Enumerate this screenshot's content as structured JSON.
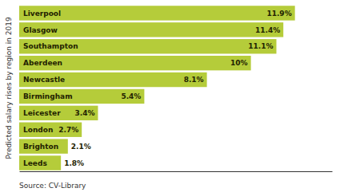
{
  "chart_data": {
    "type": "bar",
    "orientation": "horizontal",
    "categories": [
      "Leeds",
      "Brighton",
      "London",
      "Leicester",
      "Birmingham",
      "Newcastle",
      "Aberdeen",
      "Southampton",
      "Glasgow",
      "Liverpool"
    ],
    "values": [
      1.8,
      2.1,
      2.7,
      3.4,
      5.4,
      8.1,
      10.0,
      11.1,
      11.4,
      11.9
    ],
    "value_labels": [
      "1.8%",
      "2.1%",
      "2.7%",
      "3.4%",
      "5.4%",
      "8.1%",
      "10%",
      "11.1%",
      "11.4%",
      "11.9%"
    ],
    "color": "#b5cc3a",
    "xlim": [
      0,
      13.5
    ],
    "ylabel": "Predicted salary rises by region in 2019",
    "annotations": [
      "Source: CV-Library"
    ],
    "data_labels": true,
    "tick_labels": false,
    "grid": false
  }
}
